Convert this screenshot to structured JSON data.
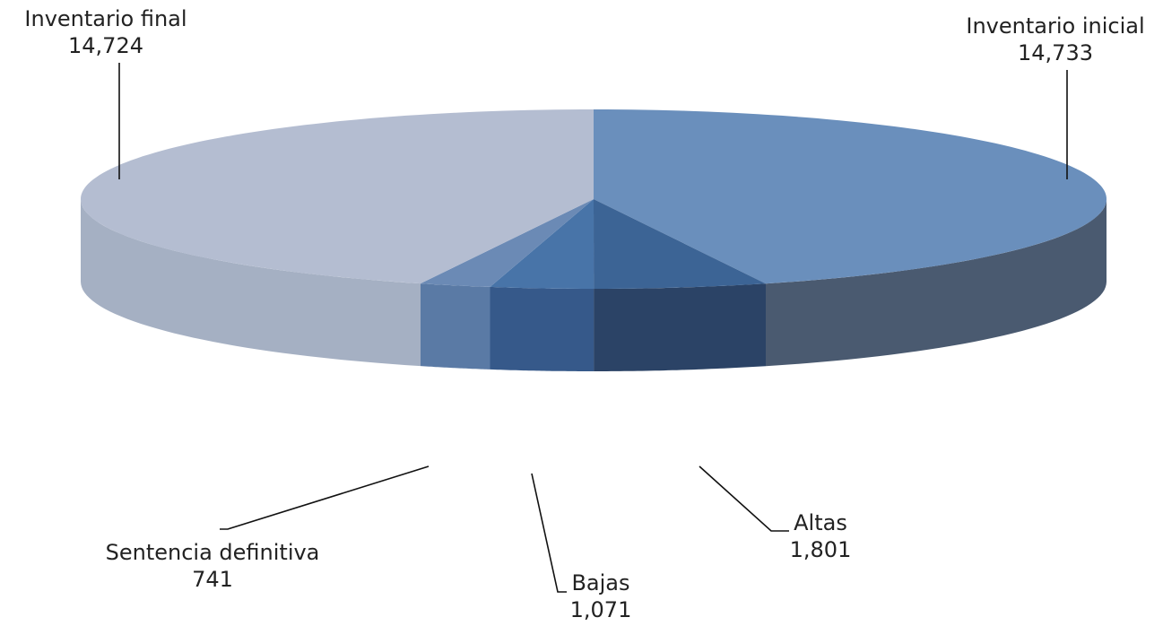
{
  "chart_data": {
    "type": "pie",
    "title": "",
    "slices": [
      {
        "label": "Inventario inicial",
        "value": 14733,
        "value_label": "14,733",
        "color": "#6a8fbc",
        "side": "#4a5a70",
        "label_slot": "top-right"
      },
      {
        "label": "Altas",
        "value": 1801,
        "value_label": "1,801",
        "color": "#3c6495",
        "side": "#2b4366",
        "label_slot": "bottom-right"
      },
      {
        "label": "Bajas",
        "value": 1071,
        "value_label": "1,071",
        "color": "#4874a8",
        "side": "#36598a",
        "label_slot": "bottom"
      },
      {
        "label": "Sentencia definitiva",
        "value": 741,
        "value_label": "741",
        "color": "#6b8ab5",
        "side": "#5a7aa5",
        "label_slot": "bottom-left"
      },
      {
        "label": "Inventario final",
        "value": 14724,
        "value_label": "14,724",
        "color": "#b4bdd1",
        "side": "#a5b0c3",
        "label_slot": "top-left"
      }
    ],
    "legend": "none",
    "style": "3d"
  }
}
